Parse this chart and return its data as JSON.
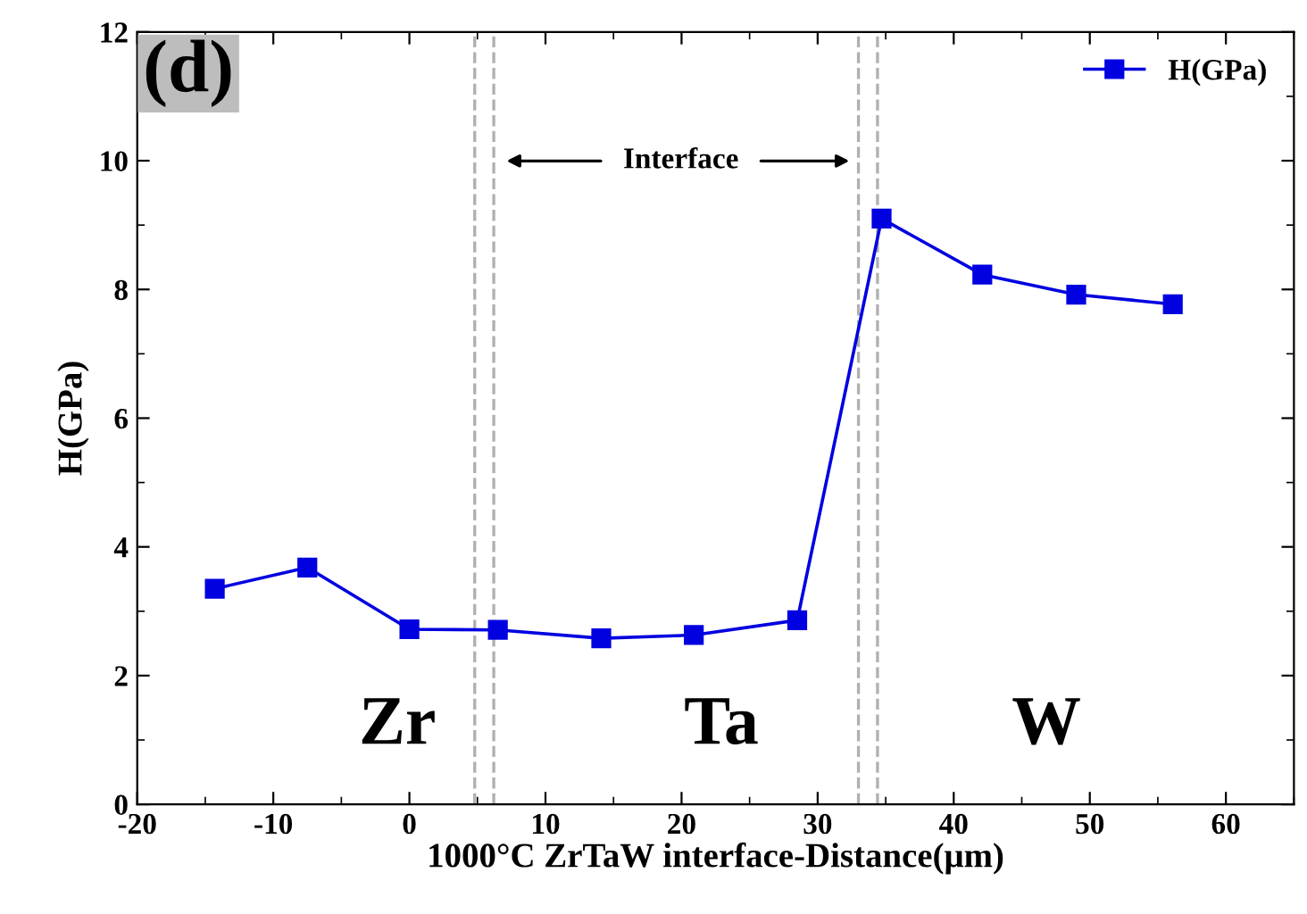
{
  "chart_data": {
    "type": "line",
    "xlabel": "1000°C ZrTaW interface-Distance(μm)",
    "ylabel": "H(GPa)",
    "x": [
      -14.3,
      -7.5,
      0,
      6.5,
      14.1,
      20.9,
      28.5,
      34.7,
      42.1,
      49.0,
      56.1
    ],
    "series": [
      {
        "name": "H(GPa)",
        "color": "#0000e0",
        "values": [
          3.35,
          3.68,
          2.72,
          2.71,
          2.58,
          2.63,
          2.86,
          9.1,
          8.23,
          7.92,
          7.77
        ]
      }
    ],
    "xlim": [
      -20,
      65
    ],
    "xticks": [
      -20,
      -10,
      0,
      10,
      20,
      30,
      40,
      50,
      60
    ],
    "ylim": [
      0,
      12
    ],
    "yticks": [
      0,
      2,
      4,
      6,
      8,
      10,
      12
    ],
    "marker": "square",
    "line_style": "solid",
    "legend": "top right",
    "grid": false,
    "ref_lines": [
      {
        "axis": "x",
        "value": 4.8,
        "color": "#b0b0b0",
        "line_style": "dashed"
      },
      {
        "axis": "x",
        "value": 6.2,
        "color": "#b0b0b0",
        "line_style": "dashed"
      },
      {
        "axis": "x",
        "value": 33.0,
        "color": "#b0b0b0",
        "line_style": "dashed"
      },
      {
        "axis": "x",
        "value": 34.4,
        "color": "#b0b0b0",
        "line_style": "dashed"
      }
    ],
    "annotations": [
      "(d)",
      "Interface",
      "Zr",
      "Ta",
      "W"
    ]
  }
}
